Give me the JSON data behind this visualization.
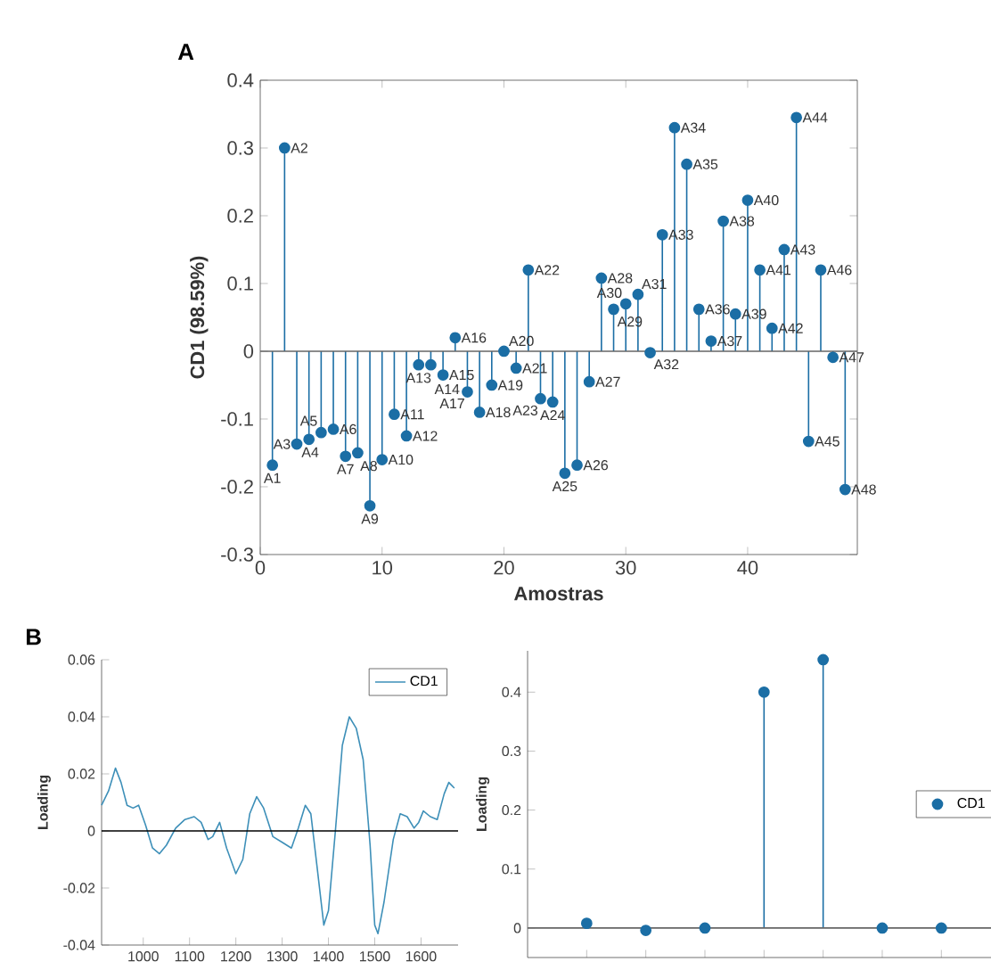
{
  "chart_data": [
    {
      "type": "lollipop",
      "title": "A",
      "xlabel": "Amostras",
      "ylabel": "CD1 (98.59%)",
      "color": "#1b6ea5",
      "marker": "circle",
      "x": [
        1,
        2,
        3,
        4,
        5,
        6,
        7,
        8,
        9,
        10,
        11,
        12,
        13,
        14,
        15,
        16,
        17,
        18,
        19,
        20,
        21,
        22,
        23,
        24,
        25,
        26,
        27,
        28,
        29,
        30,
        31,
        32,
        33,
        34,
        35,
        36,
        37,
        38,
        39,
        40,
        41,
        42,
        43,
        44,
        45,
        46,
        47,
        48
      ],
      "values": [
        -0.168,
        0.3,
        -0.137,
        -0.13,
        -0.12,
        -0.115,
        -0.155,
        -0.15,
        -0.228,
        -0.16,
        -0.093,
        -0.125,
        -0.02,
        -0.02,
        -0.035,
        0.02,
        -0.06,
        -0.09,
        -0.05,
        0.0,
        -0.025,
        0.12,
        -0.07,
        -0.075,
        -0.18,
        -0.168,
        -0.045,
        0.108,
        0.062,
        0.07,
        0.084,
        -0.002,
        0.172,
        0.33,
        0.276,
        0.062,
        0.015,
        0.192,
        0.055,
        0.223,
        0.12,
        0.034,
        0.15,
        0.345,
        -0.133,
        0.12,
        -0.009,
        -0.204
      ],
      "xlim": [
        0,
        49
      ],
      "xticks": [
        0,
        10,
        20,
        30,
        40
      ],
      "ylim": [
        -0.3,
        0.4
      ],
      "yticks": [
        -0.3,
        -0.2,
        -0.1,
        0,
        0.1,
        0.2,
        0.3,
        0.4
      ],
      "annotations": [
        {
          "text": "A1",
          "x": 1,
          "y": -0.168
        },
        {
          "text": "A2",
          "x": 2,
          "y": 0.3
        },
        {
          "text": "A3",
          "x": 3,
          "y": -0.137
        },
        {
          "text": "A4",
          "x": 4,
          "y": -0.13
        },
        {
          "text": "A5",
          "x": 5,
          "y": -0.12
        },
        {
          "text": "A6",
          "x": 6,
          "y": -0.115
        },
        {
          "text": "A7",
          "x": 7,
          "y": -0.155
        },
        {
          "text": "A8",
          "x": 8,
          "y": -0.15
        },
        {
          "text": "A9",
          "x": 9,
          "y": -0.228
        },
        {
          "text": "A10",
          "x": 10,
          "y": -0.16
        },
        {
          "text": "A11",
          "x": 11,
          "y": -0.093
        },
        {
          "text": "A12",
          "x": 12,
          "y": -0.125
        },
        {
          "text": "A13",
          "x": 13,
          "y": -0.02
        },
        {
          "text": "A14",
          "x": 14,
          "y": -0.02
        },
        {
          "text": "A15",
          "x": 15,
          "y": -0.035
        },
        {
          "text": "A16",
          "x": 16,
          "y": 0.02
        },
        {
          "text": "A17",
          "x": 17,
          "y": -0.06
        },
        {
          "text": "A18",
          "x": 18,
          "y": -0.09
        },
        {
          "text": "A19",
          "x": 19,
          "y": -0.05
        },
        {
          "text": "A20",
          "x": 20,
          "y": 0.0
        },
        {
          "text": "A21",
          "x": 21,
          "y": -0.025
        },
        {
          "text": "A22",
          "x": 22,
          "y": 0.12
        },
        {
          "text": "A23",
          "x": 23,
          "y": -0.07
        },
        {
          "text": "A24",
          "x": 24,
          "y": -0.075
        },
        {
          "text": "A25",
          "x": 25,
          "y": -0.18
        },
        {
          "text": "A26",
          "x": 26,
          "y": -0.168
        },
        {
          "text": "A27",
          "x": 27,
          "y": -0.045
        },
        {
          "text": "A28",
          "x": 28,
          "y": 0.108
        },
        {
          "text": "A29",
          "x": 29,
          "y": 0.062
        },
        {
          "text": "A30",
          "x": 30,
          "y": 0.07
        },
        {
          "text": "A31",
          "x": 31,
          "y": 0.084
        },
        {
          "text": "A32",
          "x": 32,
          "y": -0.002
        },
        {
          "text": "A33",
          "x": 33,
          "y": 0.172
        },
        {
          "text": "A34",
          "x": 34,
          "y": 0.33
        },
        {
          "text": "A35",
          "x": 35,
          "y": 0.276
        },
        {
          "text": "A36",
          "x": 36,
          "y": 0.062
        },
        {
          "text": "A37",
          "x": 37,
          "y": 0.015
        },
        {
          "text": "A38",
          "x": 38,
          "y": 0.192
        },
        {
          "text": "A39",
          "x": 39,
          "y": 0.055
        },
        {
          "text": "A40",
          "x": 40,
          "y": 0.223
        },
        {
          "text": "A41",
          "x": 41,
          "y": 0.12
        },
        {
          "text": "A42",
          "x": 42,
          "y": 0.034
        },
        {
          "text": "A43",
          "x": 43,
          "y": 0.15
        },
        {
          "text": "A44",
          "x": 44,
          "y": 0.345
        },
        {
          "text": "A45",
          "x": 45,
          "y": -0.133
        },
        {
          "text": "A46",
          "x": 46,
          "y": 0.12
        },
        {
          "text": "A47",
          "x": 47,
          "y": -0.009
        },
        {
          "text": "A48",
          "x": 48,
          "y": -0.204
        }
      ]
    },
    {
      "type": "line",
      "title": "B",
      "ylabel": "Loading",
      "legend": "top right",
      "line_style": "solid",
      "series": [
        {
          "name": "CD1",
          "color": "#3d8fb8",
          "x": [
            910,
            925,
            940,
            952,
            965,
            978,
            990,
            1005,
            1020,
            1035,
            1050,
            1070,
            1090,
            1110,
            1125,
            1140,
            1150,
            1165,
            1180,
            1200,
            1215,
            1230,
            1245,
            1260,
            1280,
            1300,
            1320,
            1335,
            1350,
            1362,
            1375,
            1390,
            1400,
            1415,
            1430,
            1445,
            1460,
            1475,
            1490,
            1500,
            1507,
            1520,
            1540,
            1555,
            1570,
            1585,
            1595,
            1605,
            1620,
            1635,
            1650,
            1660,
            1672
          ],
          "values": [
            0.009,
            0.014,
            0.022,
            0.017,
            0.009,
            0.008,
            0.009,
            0.002,
            -0.006,
            -0.008,
            -0.005,
            0.001,
            0.004,
            0.005,
            0.003,
            -0.003,
            -0.002,
            0.003,
            -0.006,
            -0.015,
            -0.01,
            0.006,
            0.012,
            0.008,
            -0.002,
            -0.004,
            -0.006,
            0.001,
            0.009,
            0.006,
            -0.012,
            -0.033,
            -0.028,
            0.0,
            0.03,
            0.04,
            0.036,
            0.025,
            -0.005,
            -0.033,
            -0.036,
            -0.025,
            -0.003,
            0.006,
            0.005,
            0.001,
            0.003,
            0.007,
            0.005,
            0.004,
            0.013,
            0.017,
            0.015
          ]
        }
      ],
      "xlim": [
        910,
        1680
      ],
      "xticks": [
        1000,
        1100,
        1200,
        1300,
        1400,
        1500,
        1600
      ],
      "ylim": [
        -0.04,
        0.06
      ],
      "yticks": [
        -0.04,
        -0.02,
        0,
        0.02,
        0.04,
        0.06
      ],
      "ref_lines": [
        {
          "axis": "y",
          "value": 0,
          "color": "#000000"
        }
      ]
    },
    {
      "type": "lollipop",
      "ylabel": "Loading",
      "legend": "right",
      "marker": "circle",
      "categories": [
        null,
        null,
        null,
        null,
        null,
        null,
        null
      ],
      "series": [
        {
          "name": "CD1",
          "color": "#1b6ea5",
          "values": [
            0.008,
            -0.004,
            0.0,
            0.4,
            0.455,
            0.0,
            0.0
          ]
        }
      ],
      "ylim": [
        -0.05,
        0.47
      ],
      "yticks": [
        0,
        0.1,
        0.2,
        0.3,
        0.4
      ]
    }
  ]
}
